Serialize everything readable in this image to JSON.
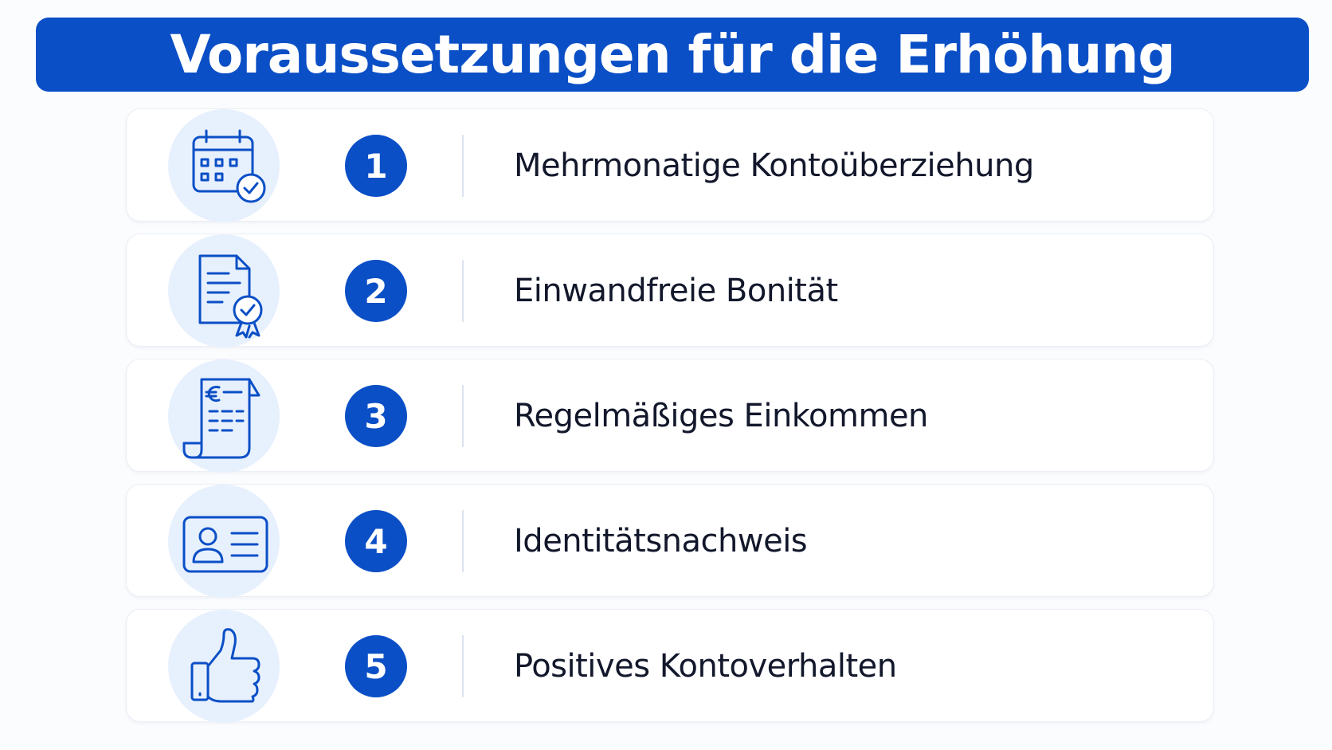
{
  "title": "Voraussetzungen für die Erhöhung",
  "colors": {
    "primary": "#0b4fc6",
    "icon_bg": "#e7f0fd",
    "text": "#12172b"
  },
  "items": [
    {
      "number": "1",
      "label": "Mehrmonatige Kontoüberziehung",
      "icon": "calendar-check-icon"
    },
    {
      "number": "2",
      "label": "Einwandfreie Bonität",
      "icon": "certificate-document-icon"
    },
    {
      "number": "3",
      "label": "Regelmäßiges Einkommen",
      "icon": "euro-receipt-icon"
    },
    {
      "number": "4",
      "label": "Identitätsnachweis",
      "icon": "id-card-icon"
    },
    {
      "number": "5",
      "label": "Positives Kontoverhalten",
      "icon": "thumbs-up-icon"
    }
  ]
}
